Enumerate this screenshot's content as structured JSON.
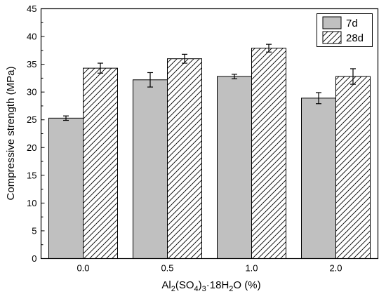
{
  "chart_data": {
    "type": "bar",
    "title": "",
    "xlabel": "Al2(SO4)3·18H2O (%)",
    "xlabel_parts": {
      "p1": "Al",
      "s1": "2",
      "p2": "(SO",
      "s2": "4",
      "p3": ")",
      "s3": "3",
      "p4": "·18H",
      "s4": "2",
      "p5": "O (%)"
    },
    "ylabel": "Compressive strength (MPa)",
    "categories": [
      "0.0",
      "0.5",
      "1.0",
      "2.0"
    ],
    "ylim": [
      0,
      45
    ],
    "yticks": [
      "0",
      "5",
      "10",
      "15",
      "20",
      "25",
      "30",
      "35",
      "40",
      "45"
    ],
    "series": [
      {
        "name": "7d",
        "values": [
          25.3,
          32.2,
          32.8,
          28.9
        ],
        "errors": [
          0.4,
          1.3,
          0.4,
          1.0
        ],
        "fill": "#c0c0c0",
        "pattern": "solid"
      },
      {
        "name": "28d",
        "values": [
          34.3,
          36.0,
          37.9,
          32.8
        ],
        "errors": [
          0.9,
          0.8,
          0.7,
          1.4
        ],
        "fill": "#ffffff",
        "pattern": "diagonal-hatch"
      }
    ],
    "legend_position": "top-right",
    "grid": false
  },
  "colors": {
    "axis": "#000000",
    "bar_stroke": "#000000",
    "solid_fill": "#c0c0c0",
    "hatch_line": "#000000"
  }
}
